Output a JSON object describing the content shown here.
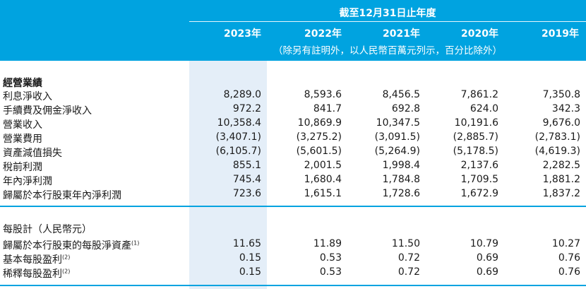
{
  "header": {
    "period_title": "截至12月31日止年度",
    "years": [
      "2023年",
      "2022年",
      "2021年",
      "2020年",
      "2019年"
    ],
    "unit_note": "（除另有註明外，以人民幣百萬元列示，百分比除外）"
  },
  "operating": {
    "title": "經營業績",
    "rows": [
      {
        "label": "利息淨收入",
        "values": [
          "8,289.0",
          "8,593.6",
          "8,456.5",
          "7,861.2",
          "7,350.8"
        ]
      },
      {
        "label": "手續費及佣金淨收入",
        "values": [
          "972.2",
          "841.7",
          "692.8",
          "624.0",
          "342.3"
        ]
      },
      {
        "label": "營業收入",
        "values": [
          "10,358.4",
          "10,869.9",
          "10,347.5",
          "10,191.6",
          "9,676.0"
        ]
      },
      {
        "label": "營業費用",
        "values": [
          "(3,407.1)",
          "(3,275.2)",
          "(3,091.5)",
          "(2,885.7)",
          "(2,783.1)"
        ]
      },
      {
        "label": "資產減值損失",
        "values": [
          "(6,105.7)",
          "(5,601.5)",
          "(5,264.9)",
          "(5,178.5)",
          "(4,619.3)"
        ]
      },
      {
        "label": "稅前利潤",
        "values": [
          "855.1",
          "2,001.5",
          "1,998.4",
          "2,137.6",
          "2,282.5"
        ]
      },
      {
        "label": "年內淨利潤",
        "values": [
          "745.4",
          "1,680.4",
          "1,784.8",
          "1,709.5",
          "1,881.2"
        ]
      },
      {
        "label": "歸屬於本行股東年內淨利潤",
        "values": [
          "723.6",
          "1,615.1",
          "1,728.6",
          "1,672.9",
          "1,837.2"
        ]
      }
    ]
  },
  "per_share": {
    "title": "每股計（人民幣元）",
    "rows": [
      {
        "label": "歸屬於本行股東的每股淨資產",
        "note": "(1)",
        "values": [
          "11.65",
          "11.89",
          "11.50",
          "10.79",
          "10.27"
        ]
      },
      {
        "label": "基本每股盈利",
        "note": "(2)",
        "values": [
          "0.15",
          "0.53",
          "0.72",
          "0.69",
          "0.76"
        ]
      },
      {
        "label": "稀釋每股盈利",
        "note": "(2)",
        "values": [
          "0.15",
          "0.53",
          "0.72",
          "0.69",
          "0.76"
        ]
      }
    ]
  }
}
